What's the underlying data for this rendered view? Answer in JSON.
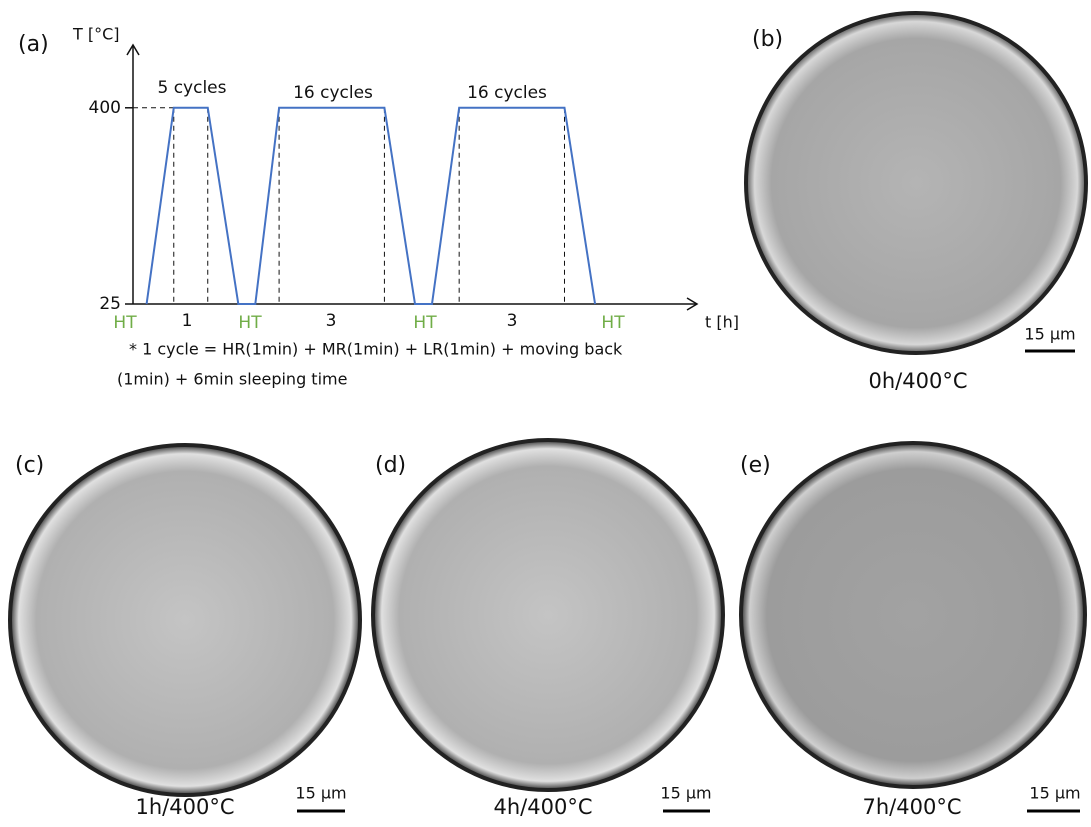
{
  "chart_data": {
    "type": "line",
    "panel_label": "(a)",
    "ylabel": "T [°C]",
    "xlabel": "t [h]",
    "x": [
      0.4,
      1.2,
      2.2,
      3.1,
      3.6,
      4.3,
      7.4,
      8.3,
      8.8,
      9.6,
      12.7,
      13.6
    ],
    "series": [
      {
        "color": "#4472c4",
        "values": [
          25,
          400,
          400,
          25,
          25,
          400,
          400,
          25,
          25,
          400,
          400,
          25
        ]
      }
    ],
    "xlim": [
      0,
      16.6
    ],
    "ylim": [
      25,
      520
    ],
    "yticks": [
      25,
      400
    ],
    "cycle_labels": [
      "5 cycles",
      "16 cycles",
      "16 cycles"
    ],
    "ht_labels": [
      "HT",
      "HT",
      "HT",
      "HT"
    ],
    "ht_color": "#70ad47",
    "duration_labels": [
      "1",
      "3",
      "3"
    ],
    "note_lines": [
      "* 1 cycle = HR(1min) + MR(1min) + LR(1min) + moving back",
      "(1min) + 6min sleeping time"
    ]
  },
  "images": [
    {
      "label": "(b)",
      "caption": "0h/400°C",
      "scale_bar": "15 µm"
    },
    {
      "label": "(c)",
      "caption": "1h/400°C",
      "scale_bar": "15 µm"
    },
    {
      "label": "(d)",
      "caption": "4h/400°C",
      "scale_bar": "15 µm"
    },
    {
      "label": "(e)",
      "caption": "7h/400°C",
      "scale_bar": "15 µm"
    }
  ]
}
